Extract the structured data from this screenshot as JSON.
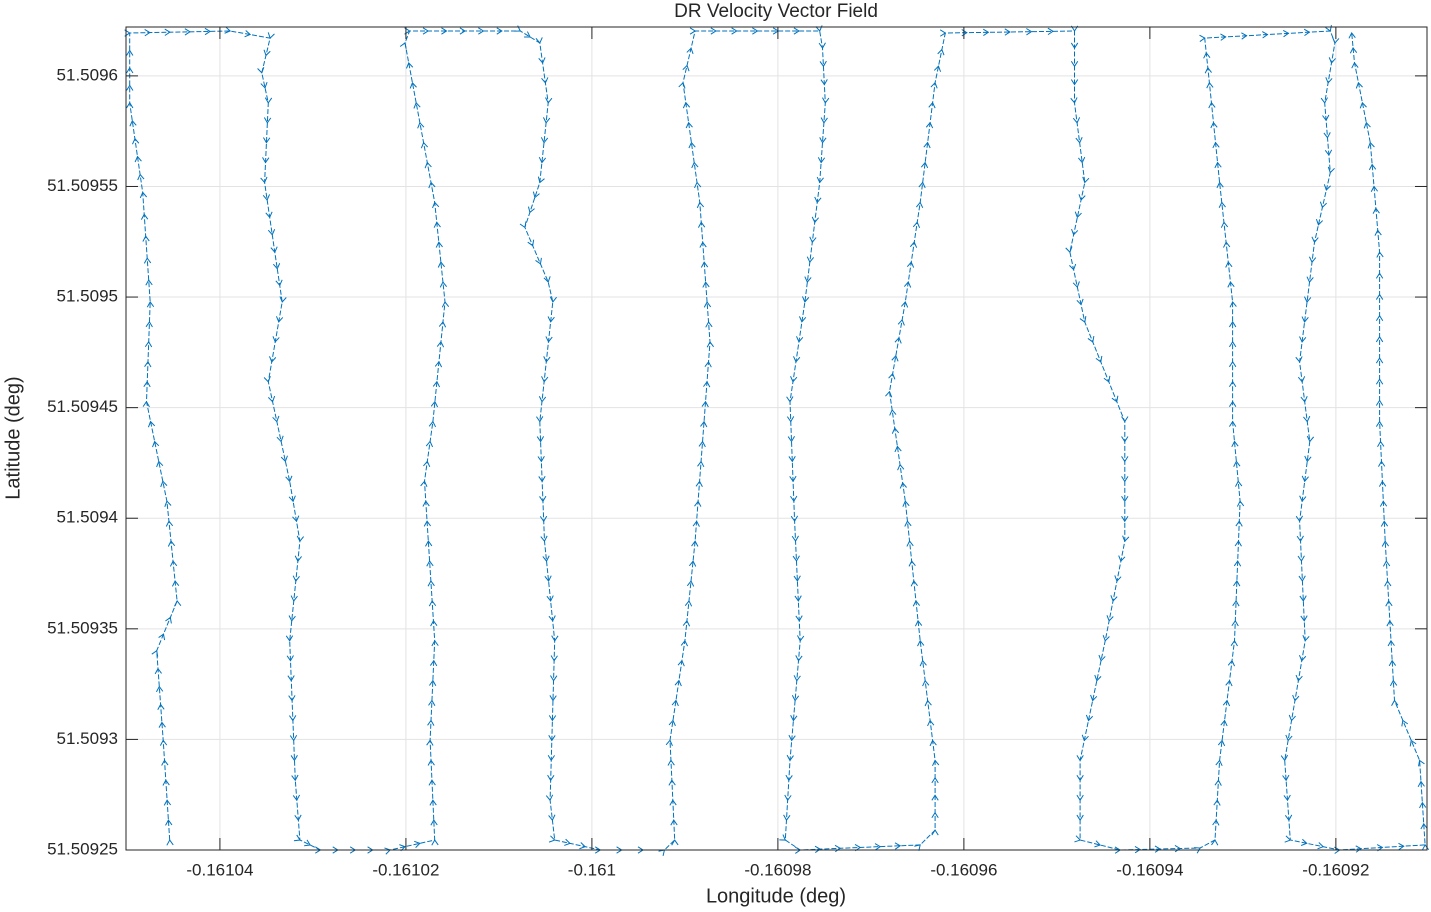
{
  "chart_data": {
    "type": "quiver",
    "title": "DR Velocity Vector Field",
    "x_label": "Longitude (deg)",
    "y_label": "Latitude (deg)",
    "color": "#0072bd",
    "grid": true,
    "xlim": [
      -0.1610501,
      -0.1609102
    ],
    "ylim": [
      51.50925,
      51.5096221
    ],
    "xticks": [
      -0.16104,
      -0.16102,
      -0.161,
      -0.16098,
      -0.16096,
      -0.16094,
      -0.16092
    ],
    "yticks": [
      51.50925,
      51.5093,
      51.50935,
      51.5094,
      51.50945,
      51.5095,
      51.50955,
      51.5096
    ],
    "x": [
      -0.1610454,
      -0.1610461,
      -0.1610468,
      -0.1610446,
      -0.1610457,
      -0.1610479,
      -0.1610475,
      -0.1610483,
      -0.1610497,
      -0.1610497,
      -0.1610389,
      -0.1610346,
      -0.1610355,
      -0.1610348,
      -0.1610352,
      -0.1610341,
      -0.1610333,
      -0.1610348,
      -0.1610325,
      -0.1610314,
      -0.1610325,
      -0.1610319,
      -0.1610314,
      -0.1610292,
      -0.1610217,
      -0.1610169,
      -0.1610174,
      -0.1610169,
      -0.161018,
      -0.1610171,
      -0.1610158,
      -0.1610169,
      -0.1610185,
      -0.1610201,
      -0.1610196,
      -0.1610077,
      -0.1610056,
      -0.1610047,
      -0.1610056,
      -0.1610072,
      -0.1610047,
      -0.1610042,
      -0.1610056,
      -0.1610051,
      -0.161004,
      -0.1610045,
      -0.161004,
      -0.1609991,
      -0.1609922,
      -0.1609911,
      -0.1609916,
      -0.16099,
      -0.1609889,
      -0.1609873,
      -0.1609884,
      -0.1609902,
      -0.1609889,
      -0.1609755,
      -0.1609752,
      -0.1609749,
      -0.1609755,
      -0.1609771,
      -0.1609787,
      -0.1609782,
      -0.1609776,
      -0.1609787,
      -0.1609792,
      -0.1609776,
      -0.1609647,
      -0.1609631,
      -0.1609631,
      -0.1609647,
      -0.1609663,
      -0.160968,
      -0.1609663,
      -0.1609647,
      -0.1609631,
      -0.160962,
      -0.1609481,
      -0.1609481,
      -0.1609481,
      -0.160947,
      -0.1609486,
      -0.160947,
      -0.1609427,
      -0.1609427,
      -0.1609448,
      -0.1609475,
      -0.1609475,
      -0.1609432,
      -0.1609346,
      -0.160933,
      -0.1609325,
      -0.1609309,
      -0.1609303,
      -0.1609311,
      -0.1609311,
      -0.1609325,
      -0.1609336,
      -0.1609341,
      -0.1609206,
      -0.1609201,
      -0.1609212,
      -0.1609206,
      -0.1609223,
      -0.1609239,
      -0.1609228,
      -0.1609239,
      -0.1609233,
      -0.1609255,
      -0.1609249,
      -0.1609196,
      -0.1609104,
      -0.160911,
      -0.1609137,
      -0.1609147,
      -0.1609153,
      -0.1609153,
      -0.1609163,
      -0.160918,
      -0.1609183
    ],
    "y": [
      51.5092545,
      51.5092996,
      51.5093401,
      51.5093626,
      51.5094077,
      51.5094527,
      51.5094978,
      51.5095473,
      51.5095878,
      51.5096194,
      51.5096203,
      51.5096171,
      51.5096014,
      51.5095878,
      51.5095518,
      51.5095203,
      51.5094978,
      51.5094617,
      51.5094167,
      51.5093896,
      51.5093446,
      51.5092815,
      51.5092545,
      51.50925,
      51.50925,
      51.5092545,
      51.5092996,
      51.5093446,
      51.5094167,
      51.5094437,
      51.5094978,
      51.5095428,
      51.5095788,
      51.5096149,
      51.5096203,
      51.5096203,
      51.5096149,
      51.5095878,
      51.5095518,
      51.5095315,
      51.5095068,
      51.5094978,
      51.5094437,
      51.5093896,
      51.5093446,
      51.5092725,
      51.5092545,
      51.50925,
      51.50925,
      51.5092545,
      51.5092996,
      51.5093446,
      51.5093896,
      51.5094797,
      51.5095428,
      51.5095969,
      51.5096203,
      51.5096203,
      51.5096126,
      51.5095878,
      51.5095518,
      51.5094978,
      51.5094527,
      51.5093987,
      51.5093446,
      51.5092905,
      51.5092545,
      51.50925,
      51.5092523,
      51.509259,
      51.5092905,
      51.5093446,
      51.5094077,
      51.5094572,
      51.5094978,
      51.5095428,
      51.5095969,
      51.5096194,
      51.5096203,
      51.5096126,
      51.5095878,
      51.5095518,
      51.5095203,
      51.5094887,
      51.5094437,
      51.5093896,
      51.5093446,
      51.5092905,
      51.5092545,
      51.50925,
      51.5092509,
      51.5092545,
      51.5092905,
      51.5093446,
      51.5094077,
      51.5094437,
      51.5094978,
      51.5095518,
      51.5095969,
      51.5096171,
      51.5096203,
      51.5096149,
      51.5095878,
      51.5095563,
      51.5095248,
      51.5094707,
      51.5094347,
      51.5093987,
      51.5093446,
      51.5092905,
      51.5092545,
      51.50925,
      51.5092523,
      51.5092905,
      51.5093176,
      51.5093896,
      51.5094437,
      51.5095203,
      51.5095698,
      51.5096059,
      51.5096194
    ]
  }
}
